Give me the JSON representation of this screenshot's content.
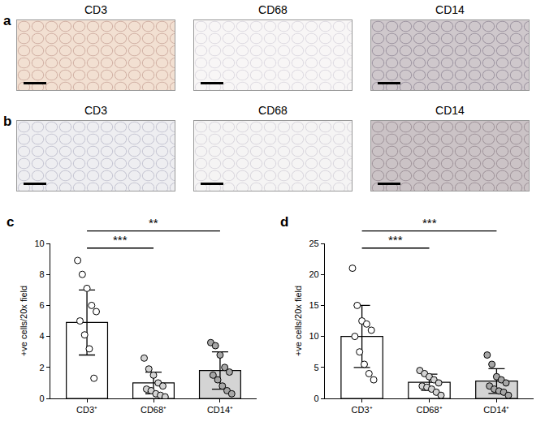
{
  "panels": [
    {
      "label": "a",
      "images": [
        "CD3",
        "CD68",
        "CD14"
      ]
    },
    {
      "label": "b",
      "images": [
        "CD3",
        "CD68",
        "CD14"
      ]
    }
  ],
  "chart_data": [
    {
      "label": "c",
      "type": "bar",
      "categories": [
        "CD3⁺",
        "CD68⁺",
        "CD14⁺"
      ],
      "values": [
        4.9,
        1.0,
        1.8
      ],
      "errors": [
        2.1,
        0.7,
        1.2
      ],
      "points": [
        [
          8.9,
          8.0,
          7.1,
          6.0,
          5.6,
          5.0,
          4.1,
          3.2,
          1.3
        ],
        [
          2.6,
          1.9,
          1.5,
          1.0,
          0.8,
          0.6,
          0.5,
          0.3,
          0.2,
          0.1
        ],
        [
          3.6,
          3.4,
          2.8,
          2.0,
          1.7,
          1.5,
          1.2,
          0.8,
          0.5,
          0.3
        ]
      ],
      "colors": [
        "#ffffff",
        "#ffffff",
        "#d4d4d4"
      ],
      "y_label": "+ve cells/20x field",
      "ylim": [
        0,
        10
      ],
      "yticks": [
        0,
        2,
        4,
        6,
        8,
        10
      ],
      "significance": [
        {
          "pair": [
            "CD3⁺",
            "CD68⁺"
          ],
          "label": "***"
        },
        {
          "pair": [
            "CD3⁺",
            "CD14⁺"
          ],
          "label": "**"
        }
      ]
    },
    {
      "label": "d",
      "type": "bar",
      "categories": [
        "CD3⁺",
        "CD68⁺",
        "CD14⁺"
      ],
      "values": [
        10.0,
        2.6,
        2.8
      ],
      "errors": [
        5.0,
        1.3,
        2.0
      ],
      "points": [
        [
          21.0,
          15.0,
          12.5,
          12.0,
          11.0,
          10.0,
          7.5,
          5.5,
          4.0,
          3.0
        ],
        [
          4.5,
          4.0,
          3.5,
          3.0,
          2.5,
          2.0,
          1.8,
          1.5,
          1.0,
          0.5
        ],
        [
          7.0,
          5.5,
          3.5,
          3.0,
          2.5,
          2.0,
          1.5,
          1.2,
          1.0,
          0.5
        ]
      ],
      "colors": [
        "#ffffff",
        "#ffffff",
        "#d4d4d4"
      ],
      "y_label": "+ve cells/20x field",
      "ylim": [
        0,
        25
      ],
      "yticks": [
        0,
        5,
        10,
        15,
        20,
        25
      ],
      "significance": [
        {
          "pair": [
            "CD3⁺",
            "CD68⁺"
          ],
          "label": "***"
        },
        {
          "pair": [
            "CD3⁺",
            "CD14⁺"
          ],
          "label": "***"
        }
      ]
    }
  ]
}
